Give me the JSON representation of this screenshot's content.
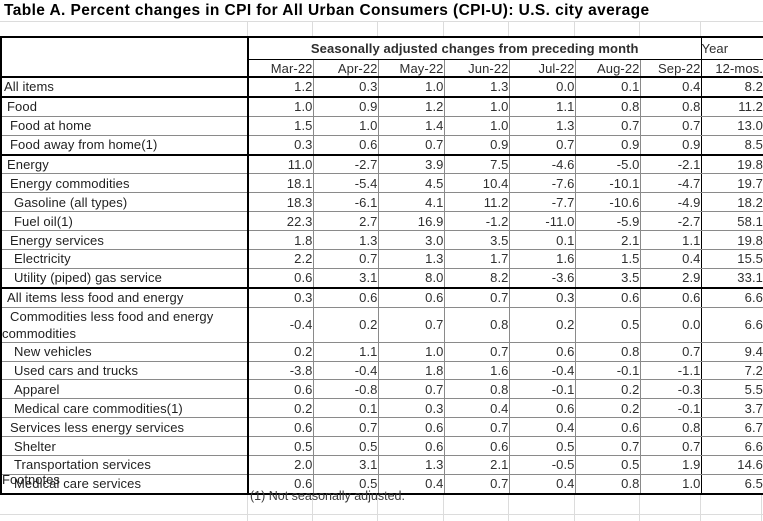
{
  "title": "Table A. Percent changes in CPI for All Urban Consumers (CPI-U): U.S. city average",
  "table": {
    "header": {
      "span_label": "Seasonally adjusted changes from preceding month",
      "year_label": "Year",
      "months": [
        "Mar-22",
        "Apr-22",
        "May-22",
        "Jun-22",
        "Jul-22",
        "Aug-22",
        "Sep-22"
      ],
      "year_sub": "12-mos."
    },
    "rows": [
      {
        "label": "All items",
        "indent": 0,
        "group_end": true,
        "values": [
          "1.2",
          "0.3",
          "1.0",
          "1.3",
          "0.0",
          "0.1",
          "0.4",
          "8.2"
        ]
      },
      {
        "label": "Food",
        "indent": 1,
        "values": [
          "1.0",
          "0.9",
          "1.2",
          "1.0",
          "1.1",
          "0.8",
          "0.8",
          "11.2"
        ]
      },
      {
        "label": "Food at home",
        "indent": 2,
        "values": [
          "1.5",
          "1.0",
          "1.4",
          "1.0",
          "1.3",
          "0.7",
          "0.7",
          "13.0"
        ]
      },
      {
        "label": "Food away from home(1)",
        "indent": 2,
        "group_end": true,
        "values": [
          "0.3",
          "0.6",
          "0.7",
          "0.9",
          "0.7",
          "0.9",
          "0.9",
          "8.5"
        ]
      },
      {
        "label": "Energy",
        "indent": 1,
        "values": [
          "11.0",
          "-2.7",
          "3.9",
          "7.5",
          "-4.6",
          "-5.0",
          "-2.1",
          "19.8"
        ]
      },
      {
        "label": "Energy commodities",
        "indent": 2,
        "values": [
          "18.1",
          "-5.4",
          "4.5",
          "10.4",
          "-7.6",
          "-10.1",
          "-4.7",
          "19.7"
        ]
      },
      {
        "label": "Gasoline (all types)",
        "indent": 3,
        "values": [
          "18.3",
          "-6.1",
          "4.1",
          "11.2",
          "-7.7",
          "-10.6",
          "-4.9",
          "18.2"
        ]
      },
      {
        "label": "Fuel oil(1)",
        "indent": 3,
        "values": [
          "22.3",
          "2.7",
          "16.9",
          "-1.2",
          "-11.0",
          "-5.9",
          "-2.7",
          "58.1"
        ]
      },
      {
        "label": "Energy services",
        "indent": 2,
        "values": [
          "1.8",
          "1.3",
          "3.0",
          "3.5",
          "0.1",
          "2.1",
          "1.1",
          "19.8"
        ]
      },
      {
        "label": "Electricity",
        "indent": 3,
        "values": [
          "2.2",
          "0.7",
          "1.3",
          "1.7",
          "1.6",
          "1.5",
          "0.4",
          "15.5"
        ]
      },
      {
        "label": "Utility (piped) gas service",
        "indent": 3,
        "group_end": true,
        "values": [
          "0.6",
          "3.1",
          "8.0",
          "8.2",
          "-3.6",
          "3.5",
          "2.9",
          "33.1"
        ]
      },
      {
        "label": "All items less food and energy",
        "indent": 1,
        "values": [
          "0.3",
          "0.6",
          "0.6",
          "0.7",
          "0.3",
          "0.6",
          "0.6",
          "6.6"
        ]
      },
      {
        "label": "Commodities less food and energy commodities",
        "indent": 2,
        "values": [
          "-0.4",
          "0.2",
          "0.7",
          "0.8",
          "0.2",
          "0.5",
          "0.0",
          "6.6"
        ]
      },
      {
        "label": "New vehicles",
        "indent": 3,
        "values": [
          "0.2",
          "1.1",
          "1.0",
          "0.7",
          "0.6",
          "0.8",
          "0.7",
          "9.4"
        ]
      },
      {
        "label": "Used cars and trucks",
        "indent": 3,
        "values": [
          "-3.8",
          "-0.4",
          "1.8",
          "1.6",
          "-0.4",
          "-0.1",
          "-1.1",
          "7.2"
        ]
      },
      {
        "label": "Apparel",
        "indent": 3,
        "values": [
          "0.6",
          "-0.8",
          "0.7",
          "0.8",
          "-0.1",
          "0.2",
          "-0.3",
          "5.5"
        ]
      },
      {
        "label": "Medical care commodities(1)",
        "indent": 3,
        "values": [
          "0.2",
          "0.1",
          "0.3",
          "0.4",
          "0.6",
          "0.2",
          "-0.1",
          "3.7"
        ]
      },
      {
        "label": "Services less energy services",
        "indent": 2,
        "values": [
          "0.6",
          "0.7",
          "0.6",
          "0.7",
          "0.4",
          "0.6",
          "0.8",
          "6.7"
        ]
      },
      {
        "label": "Shelter",
        "indent": 3,
        "values": [
          "0.5",
          "0.5",
          "0.6",
          "0.6",
          "0.5",
          "0.7",
          "0.7",
          "6.6"
        ]
      },
      {
        "label": "Transportation services",
        "indent": 3,
        "values": [
          "2.0",
          "3.1",
          "1.3",
          "2.1",
          "-0.5",
          "0.5",
          "1.9",
          "14.6"
        ]
      },
      {
        "label": "Medical care services",
        "indent": 3,
        "values": [
          "0.6",
          "0.5",
          "0.4",
          "0.7",
          "0.4",
          "0.8",
          "1.0",
          "6.5"
        ]
      }
    ]
  },
  "footnotes": {
    "heading": "Footnotes",
    "note": "(1) Not seasonally adjusted."
  }
}
